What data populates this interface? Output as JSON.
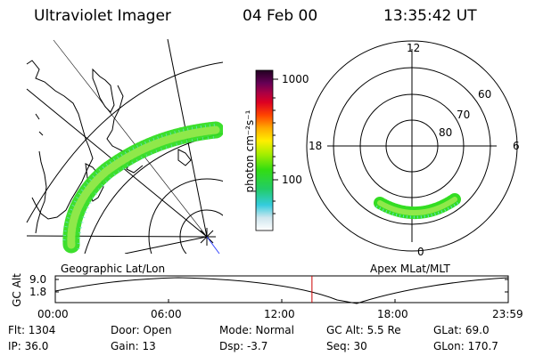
{
  "header": {
    "instrument": "Ultraviolet Imager",
    "date": "04 Feb 00",
    "time": "13:35:42 UT"
  },
  "colorbar": {
    "unit_label": "photon cm⁻²s⁻¹",
    "ticks": [
      "1000",
      "100"
    ]
  },
  "polar_plot": {
    "mlt_labels": {
      "top": "12",
      "left": "18",
      "right": "6",
      "bottom": "0"
    },
    "lat_labels": [
      "60",
      "70",
      "80"
    ]
  },
  "panel_labels": {
    "left": "Geographic Lat/Lon",
    "right": "Apex  MLat/MLT"
  },
  "orbit_plot": {
    "ylabel": "GC Alt",
    "yticks": [
      "9.0",
      "1.8"
    ],
    "xticks": [
      "00:00",
      "06:00",
      "12:00",
      "18:00",
      "23:59"
    ],
    "current_time_hours": 13.6
  },
  "status": {
    "flt": "Flt: 1304",
    "ip": "IP: 36.0",
    "door": "Door: Open",
    "gain": "Gain: 13",
    "mode": "Mode: Normal",
    "dsp": "Dsp:    -3.7",
    "gc_alt": "GC Alt: 5.5 Re",
    "seq": "Seq: 30",
    "glat": "GLat:  69.0",
    "glon": "GLon: 170.7"
  },
  "colors": {
    "marker_red": "#cc0000",
    "auroral_green": "#33dd22",
    "auroral_cyan": "#66ddcc"
  }
}
